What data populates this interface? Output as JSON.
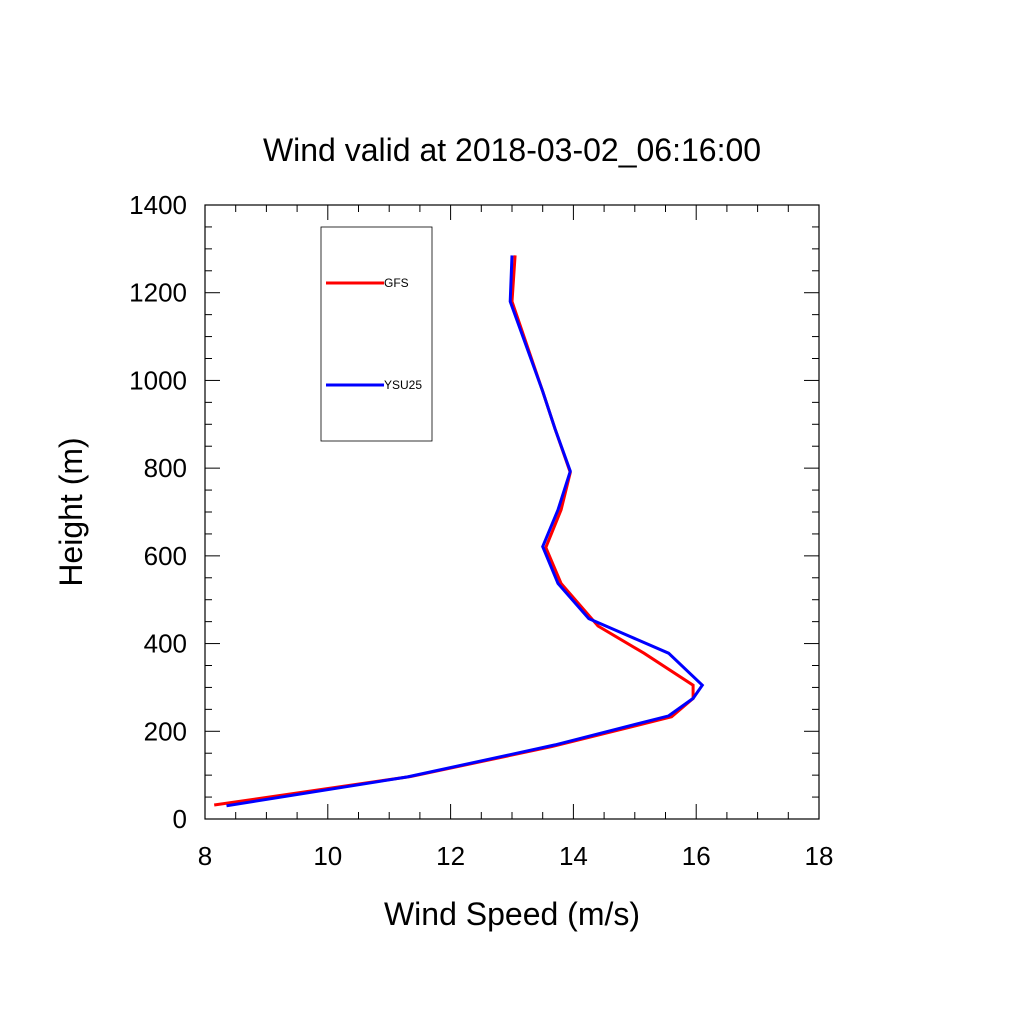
{
  "chart_data": {
    "type": "line",
    "title": "Wind valid at 2018-03-02_06:16:00",
    "xlabel": "Wind Speed (m/s)",
    "ylabel": "Height (m)",
    "xlim": [
      8,
      18
    ],
    "ylim": [
      0,
      1400
    ],
    "x_major_ticks": [
      8,
      10,
      12,
      14,
      16,
      18
    ],
    "x_tick_labels": [
      "8",
      "10",
      "12",
      "14",
      "16",
      "18"
    ],
    "x_minor_step": 0.5,
    "y_major_ticks": [
      0,
      200,
      400,
      600,
      800,
      1000,
      1200,
      1400
    ],
    "y_tick_labels": [
      "0",
      "200",
      "400",
      "600",
      "800",
      "1000",
      "1200",
      "1400"
    ],
    "y_minor_step": 50,
    "grid": false,
    "legend_position": "top-left",
    "series": [
      {
        "name": "GFS",
        "color": "#ff0000",
        "points": [
          [
            8.15,
            32
          ],
          [
            11.35,
            97
          ],
          [
            13.65,
            165
          ],
          [
            15.6,
            233
          ],
          [
            15.95,
            275
          ],
          [
            15.95,
            305
          ],
          [
            15.15,
            378
          ],
          [
            14.4,
            440
          ],
          [
            13.8,
            537
          ],
          [
            13.55,
            619
          ],
          [
            13.8,
            705
          ],
          [
            13.95,
            790
          ],
          [
            13.7,
            890
          ],
          [
            13.5,
            975
          ],
          [
            13.0,
            1180
          ],
          [
            13.05,
            1285
          ]
        ]
      },
      {
        "name": "YSU25",
        "color": "#0000ff",
        "points": [
          [
            8.35,
            30
          ],
          [
            11.3,
            96
          ],
          [
            13.7,
            169
          ],
          [
            15.55,
            235
          ],
          [
            15.95,
            275
          ],
          [
            16.1,
            305
          ],
          [
            15.55,
            378
          ],
          [
            14.25,
            457
          ],
          [
            13.75,
            537
          ],
          [
            13.5,
            621
          ],
          [
            13.75,
            705
          ],
          [
            13.95,
            793
          ],
          [
            13.7,
            890
          ],
          [
            13.5,
            975
          ],
          [
            12.97,
            1180
          ],
          [
            13.0,
            1285
          ]
        ]
      }
    ]
  }
}
